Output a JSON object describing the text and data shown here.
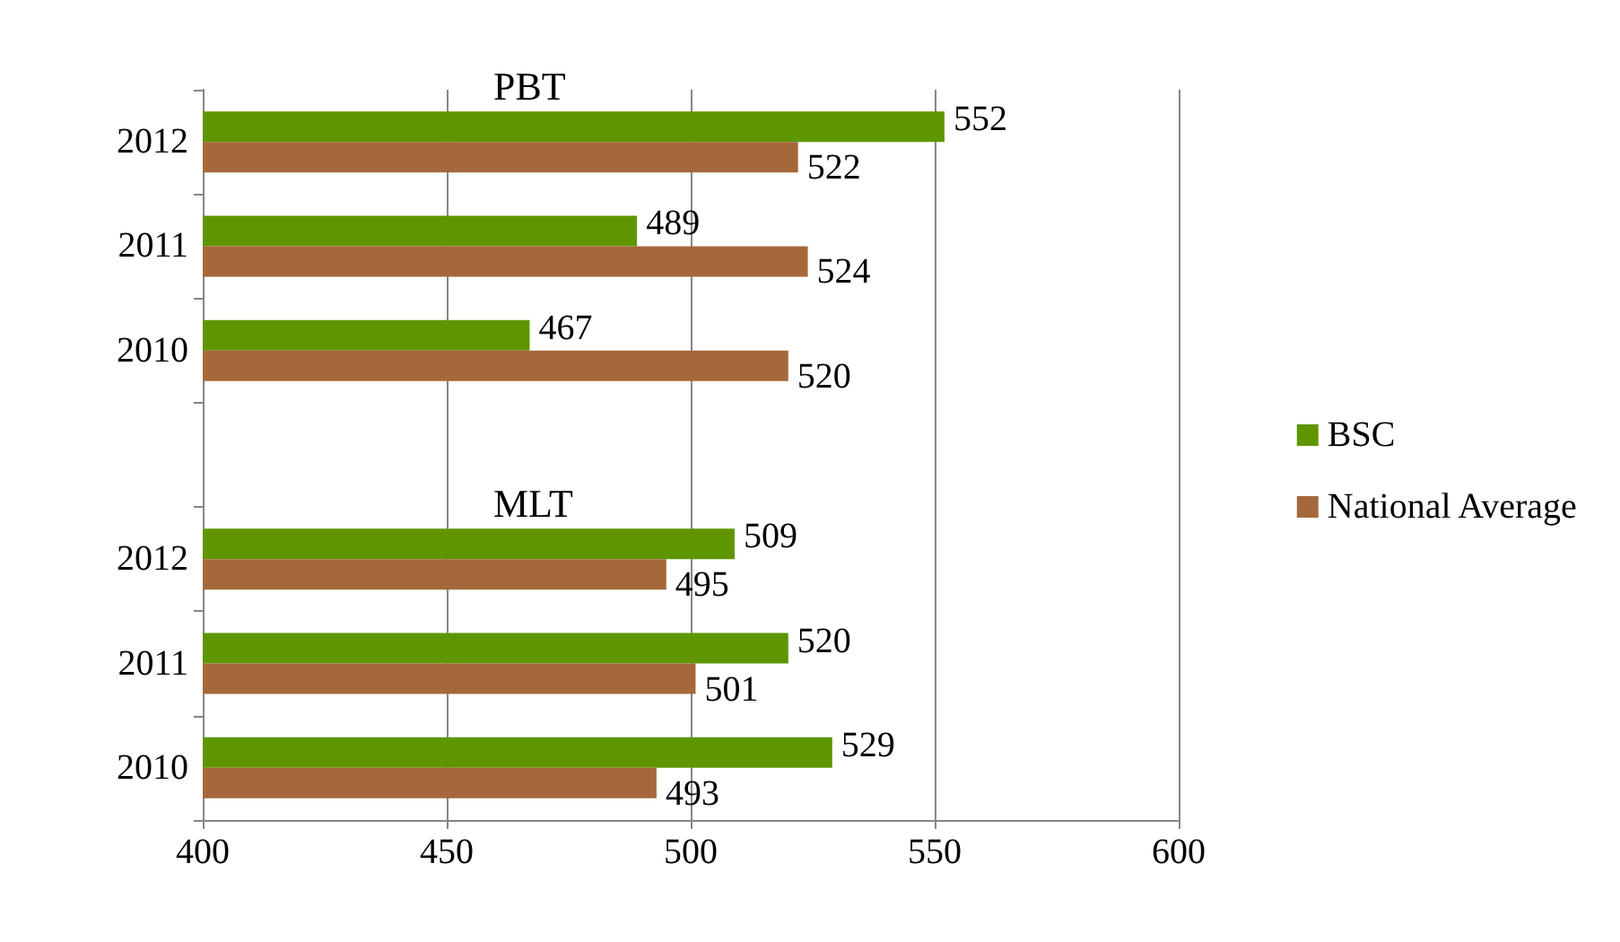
{
  "chart_data": {
    "type": "bar",
    "orientation": "horizontal",
    "categories": [
      "2012",
      "2011",
      "2010",
      null,
      "2012",
      "2011",
      "2010"
    ],
    "series": [
      {
        "name": "BSC",
        "color": "#5f9600",
        "values": [
          552,
          489,
          467,
          null,
          509,
          520,
          529
        ]
      },
      {
        "name": "National Average",
        "color": "#a5683a",
        "values": [
          522,
          524,
          520,
          null,
          495,
          501,
          493
        ]
      }
    ],
    "annotations": [
      "PBT",
      "MLT"
    ],
    "xlim": [
      400,
      600
    ],
    "xticks": [
      400,
      450,
      500,
      550,
      600
    ],
    "grid": "x",
    "legend": "right",
    "data_labels": true
  }
}
